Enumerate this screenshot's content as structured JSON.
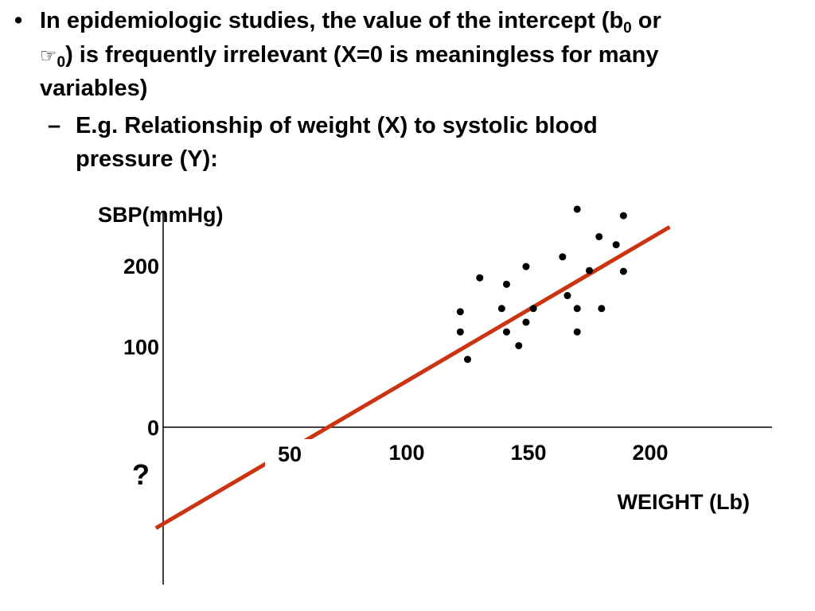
{
  "bullet": {
    "marker": "•",
    "part1": "In epidemiologic studies, the value of the intercept (b",
    "sub0": "0",
    "part2": " or",
    "symbol": "☞",
    "sub1": "0",
    "part3": ") is frequently irrelevant (X=0 is meaningless for many",
    "part4": "variables)"
  },
  "subbullet": {
    "marker": "–",
    "line1": "E.g. Relationship of weight (X) to systolic blood",
    "line2": "pressure (Y):"
  },
  "colors": {
    "fit_line": "#cc3311",
    "points": "#000000",
    "axes": "#000000"
  },
  "chart_data": {
    "type": "scatter",
    "ylabel": "SBP(mmHg)",
    "xlabel": "WEIGHT (Lb)",
    "x_ticks": [
      50,
      100,
      150,
      200
    ],
    "y_ticks": [
      0,
      100,
      200
    ],
    "ylim": [
      -195,
      275
    ],
    "xlim": [
      -3,
      250
    ],
    "annotation": "?",
    "points": [
      {
        "x": 122,
        "y": 143
      },
      {
        "x": 122,
        "y": 118
      },
      {
        "x": 125,
        "y": 84
      },
      {
        "x": 130,
        "y": 185
      },
      {
        "x": 139,
        "y": 147
      },
      {
        "x": 141,
        "y": 177
      },
      {
        "x": 141,
        "y": 118
      },
      {
        "x": 146,
        "y": 101
      },
      {
        "x": 149,
        "y": 199
      },
      {
        "x": 149,
        "y": 130
      },
      {
        "x": 152,
        "y": 147
      },
      {
        "x": 164,
        "y": 211
      },
      {
        "x": 166,
        "y": 163
      },
      {
        "x": 170,
        "y": 270
      },
      {
        "x": 170,
        "y": 147
      },
      {
        "x": 170,
        "y": 118
      },
      {
        "x": 175,
        "y": 194
      },
      {
        "x": 179,
        "y": 236
      },
      {
        "x": 180,
        "y": 147
      },
      {
        "x": 186,
        "y": 226
      },
      {
        "x": 189,
        "y": 262
      },
      {
        "x": 189,
        "y": 193
      }
    ],
    "fit_line": {
      "x": [
        -3,
        208
      ],
      "y": [
        -125,
        248
      ]
    },
    "grid": false
  }
}
